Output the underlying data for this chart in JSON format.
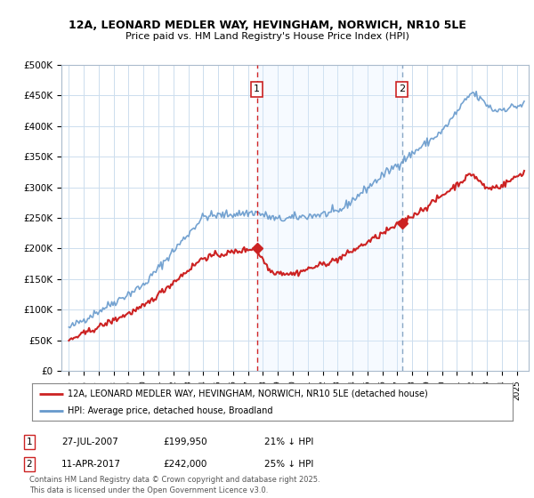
{
  "title": "12A, LEONARD MEDLER WAY, HEVINGHAM, NORWICH, NR10 5LE",
  "subtitle": "Price paid vs. HM Land Registry's House Price Index (HPI)",
  "background_color": "#ffffff",
  "plot_bg_color": "#ffffff",
  "shade_color": "#ddeeff",
  "ylabel": "",
  "xlabel": "",
  "ylim": [
    0,
    500000
  ],
  "yticks": [
    0,
    50000,
    100000,
    150000,
    200000,
    250000,
    300000,
    350000,
    400000,
    450000,
    500000
  ],
  "ytick_labels": [
    "£0",
    "£50K",
    "£100K",
    "£150K",
    "£200K",
    "£250K",
    "£300K",
    "£350K",
    "£400K",
    "£450K",
    "£500K"
  ],
  "hpi_color": "#6699cc",
  "price_color": "#cc2222",
  "vline1_color": "#cc0000",
  "vline2_color": "#7799bb",
  "legend_label1": "12A, LEONARD MEDLER WAY, HEVINGHAM, NORWICH, NR10 5LE (detached house)",
  "legend_label2": "HPI: Average price, detached house, Broadland",
  "annotation1_date": "27-JUL-2007",
  "annotation1_price": "£199,950",
  "annotation1_pct": "21% ↓ HPI",
  "annotation2_date": "11-APR-2017",
  "annotation2_price": "£242,000",
  "annotation2_pct": "25% ↓ HPI",
  "footer": "Contains HM Land Registry data © Crown copyright and database right 2025.\nThis data is licensed under the Open Government Licence v3.0."
}
